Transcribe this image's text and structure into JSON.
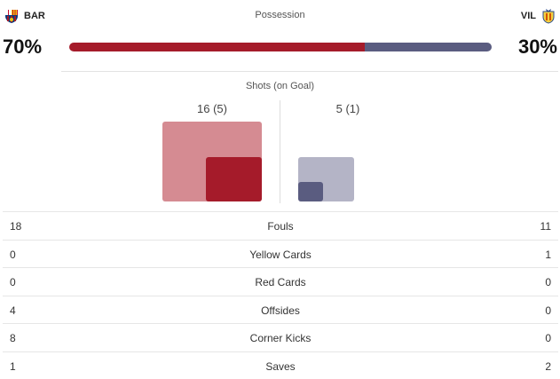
{
  "teams": {
    "home": {
      "abbr": "BAR",
      "crest_icon": "barcelona-crest-icon",
      "color": "#a51b2a"
    },
    "away": {
      "abbr": "VIL",
      "crest_icon": "villarreal-crest-icon",
      "color": "#5a5c80"
    }
  },
  "possession": {
    "title": "Possession",
    "home": {
      "label": "70%",
      "value": 70
    },
    "away": {
      "label": "30%",
      "value": 30
    }
  },
  "shots": {
    "title": "Shots (on Goal)",
    "home": {
      "label": "16 (5)",
      "total": 16,
      "on_goal": 5
    },
    "away": {
      "label": "5 (1)",
      "total": 5,
      "on_goal": 1
    }
  },
  "stats": [
    {
      "label": "Fouls",
      "home": "18",
      "away": "11"
    },
    {
      "label": "Yellow Cards",
      "home": "0",
      "away": "1"
    },
    {
      "label": "Red Cards",
      "home": "0",
      "away": "0"
    },
    {
      "label": "Offsides",
      "home": "4",
      "away": "0"
    },
    {
      "label": "Corner Kicks",
      "home": "8",
      "away": "0"
    },
    {
      "label": "Saves",
      "home": "1",
      "away": "2"
    }
  ]
}
